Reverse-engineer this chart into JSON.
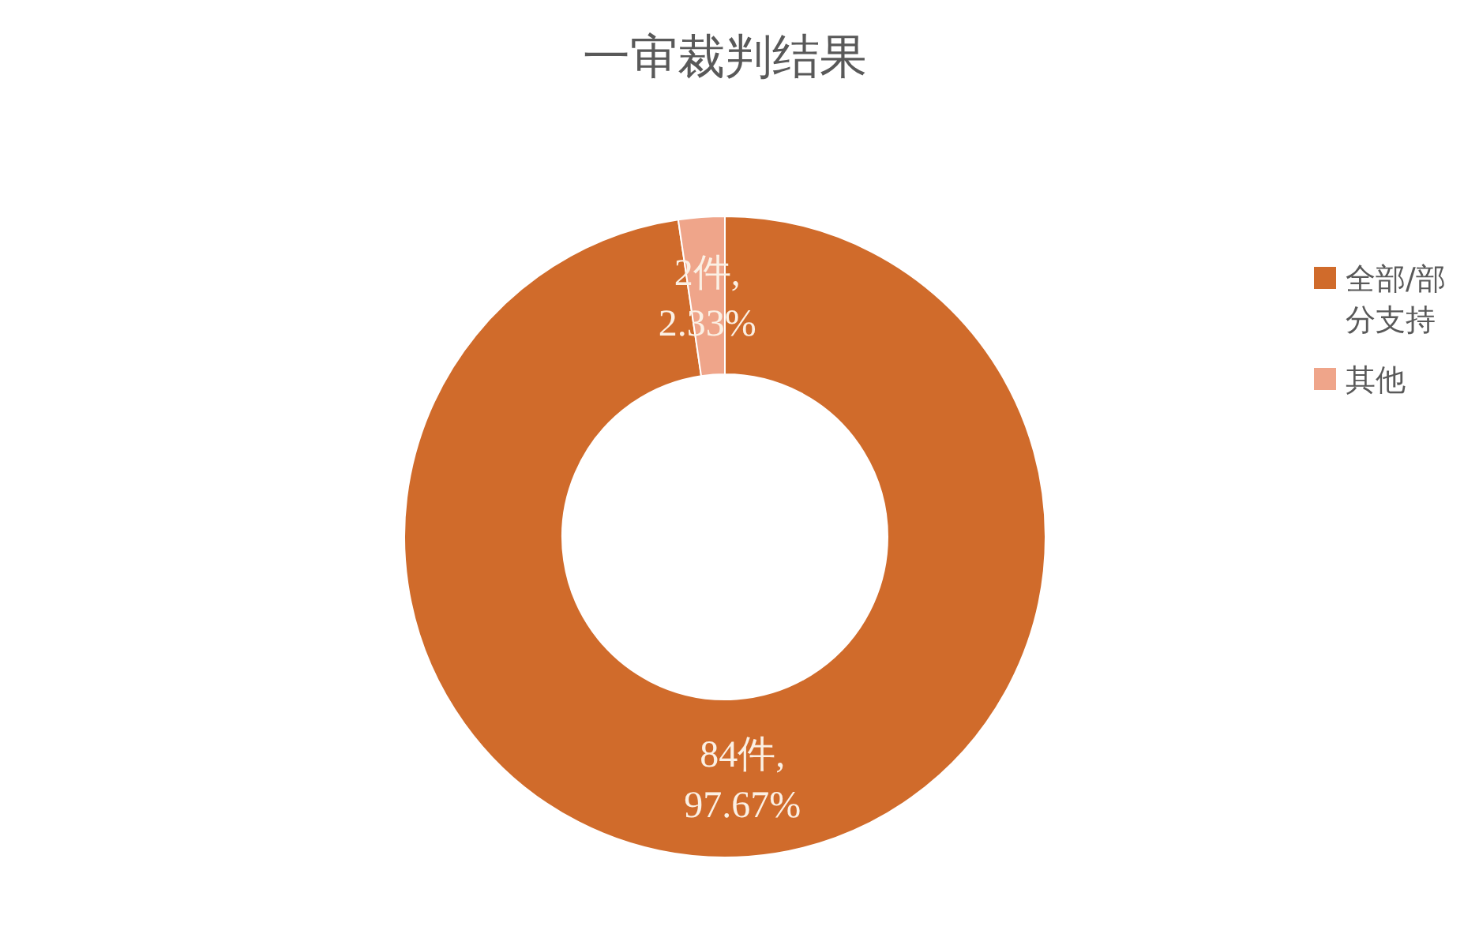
{
  "chart_data": {
    "type": "donut",
    "title": "一审裁判结果",
    "categories": [
      "全部/部分支持",
      "其他"
    ],
    "values": [
      84,
      2
    ],
    "colors": [
      "#d06b2b",
      "#efa58a"
    ],
    "value_labels": [
      "84件,\n97.67%",
      "2件,\n2.33%"
    ],
    "legend": "right"
  }
}
